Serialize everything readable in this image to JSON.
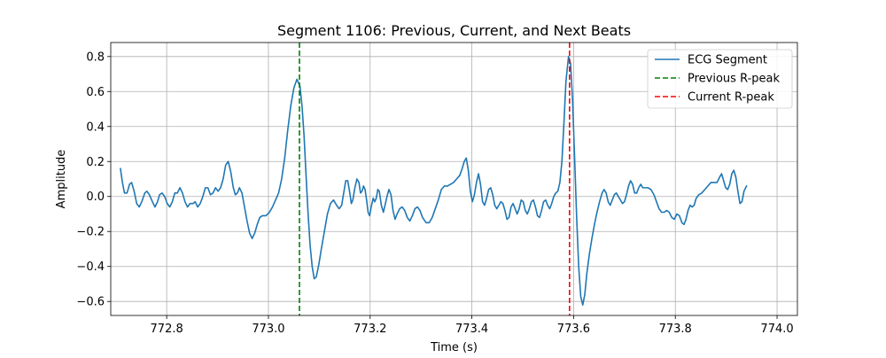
{
  "chart_data": {
    "type": "line",
    "title": "Segment 1106: Previous, Current, and Next Beats",
    "xlabel": "Time (s)",
    "ylabel": "Amplitude",
    "xlim": [
      772.69,
      774.04
    ],
    "ylim": [
      -0.68,
      0.88
    ],
    "grid": true,
    "legend_position": "top-right",
    "xticks": [
      772.8,
      773.0,
      773.2,
      773.4,
      773.6,
      773.8,
      774.0
    ],
    "xtick_labels": [
      "772.8",
      "773.0",
      "773.2",
      "773.4",
      "773.6",
      "773.8",
      "774.0"
    ],
    "yticks": [
      -0.6,
      -0.4,
      -0.2,
      0.0,
      0.2,
      0.4,
      0.6,
      0.8
    ],
    "ytick_labels": [
      "−0.6",
      "−0.4",
      "−0.2",
      "0.0",
      "0.2",
      "0.4",
      "0.6",
      "0.8"
    ],
    "series": [
      {
        "name": "ECG Segment",
        "color": "#1f77b4",
        "style": "solid",
        "points": [
          [
            772.709,
            0.16
          ],
          [
            772.713,
            0.08
          ],
          [
            772.717,
            0.02
          ],
          [
            772.722,
            0.02
          ],
          [
            772.727,
            0.07
          ],
          [
            772.731,
            0.08
          ],
          [
            772.736,
            0.03
          ],
          [
            772.741,
            -0.04
          ],
          [
            772.746,
            -0.06
          ],
          [
            772.751,
            -0.03
          ],
          [
            772.757,
            0.02
          ],
          [
            772.761,
            0.03
          ],
          [
            772.766,
            0.01
          ],
          [
            772.772,
            -0.03
          ],
          [
            772.777,
            -0.06
          ],
          [
            772.782,
            -0.03
          ],
          [
            772.786,
            0.01
          ],
          [
            772.791,
            0.02
          ],
          [
            772.796,
            0.0
          ],
          [
            772.801,
            -0.04
          ],
          [
            772.806,
            -0.06
          ],
          [
            772.811,
            -0.03
          ],
          [
            772.816,
            0.02
          ],
          [
            772.821,
            0.02
          ],
          [
            772.826,
            0.05
          ],
          [
            772.831,
            0.02
          ],
          [
            772.836,
            -0.03
          ],
          [
            772.841,
            -0.06
          ],
          [
            772.846,
            -0.04
          ],
          [
            772.852,
            -0.04
          ],
          [
            772.856,
            -0.03
          ],
          [
            772.861,
            -0.06
          ],
          [
            772.866,
            -0.04
          ],
          [
            772.871,
            0.0
          ],
          [
            772.876,
            0.05
          ],
          [
            772.881,
            0.05
          ],
          [
            772.886,
            0.01
          ],
          [
            772.891,
            0.02
          ],
          [
            772.896,
            0.05
          ],
          [
            772.901,
            0.03
          ],
          [
            772.906,
            0.05
          ],
          [
            772.911,
            0.1
          ],
          [
            772.916,
            0.18
          ],
          [
            772.921,
            0.2
          ],
          [
            772.926,
            0.14
          ],
          [
            772.931,
            0.05
          ],
          [
            772.935,
            0.01
          ],
          [
            772.939,
            0.02
          ],
          [
            772.943,
            0.05
          ],
          [
            772.948,
            0.02
          ],
          [
            772.953,
            -0.06
          ],
          [
            772.958,
            -0.14
          ],
          [
            772.963,
            -0.21
          ],
          [
            772.968,
            -0.24
          ],
          [
            772.973,
            -0.21
          ],
          [
            772.978,
            -0.16
          ],
          [
            772.983,
            -0.12
          ],
          [
            772.988,
            -0.11
          ],
          [
            772.995,
            -0.11
          ],
          [
            773.002,
            -0.09
          ],
          [
            773.008,
            -0.06
          ],
          [
            773.014,
            -0.02
          ],
          [
            773.02,
            0.02
          ],
          [
            773.026,
            0.1
          ],
          [
            773.032,
            0.22
          ],
          [
            773.038,
            0.38
          ],
          [
            773.044,
            0.52
          ],
          [
            773.05,
            0.62
          ],
          [
            773.056,
            0.67
          ],
          [
            773.062,
            0.63
          ],
          [
            773.066,
            0.52
          ],
          [
            773.07,
            0.35
          ],
          [
            773.074,
            0.12
          ],
          [
            773.078,
            -0.1
          ],
          [
            773.082,
            -0.28
          ],
          [
            773.086,
            -0.4
          ],
          [
            773.09,
            -0.47
          ],
          [
            773.094,
            -0.46
          ],
          [
            773.099,
            -0.39
          ],
          [
            773.104,
            -0.3
          ],
          [
            773.11,
            -0.2
          ],
          [
            773.116,
            -0.1
          ],
          [
            773.122,
            -0.04
          ],
          [
            773.128,
            -0.02
          ],
          [
            773.134,
            -0.05
          ],
          [
            773.139,
            -0.07
          ],
          [
            773.144,
            -0.05
          ],
          [
            773.148,
            0.02
          ],
          [
            773.152,
            0.09
          ],
          [
            773.156,
            0.09
          ],
          [
            773.16,
            0.02
          ],
          [
            773.163,
            -0.04
          ],
          [
            773.166,
            -0.02
          ],
          [
            773.17,
            0.05
          ],
          [
            773.174,
            0.1
          ],
          [
            773.178,
            0.08
          ],
          [
            773.181,
            0.02
          ],
          [
            773.184,
            0.03
          ],
          [
            773.187,
            0.06
          ],
          [
            773.19,
            0.04
          ],
          [
            773.193,
            -0.02
          ],
          [
            773.196,
            -0.09
          ],
          [
            773.199,
            -0.11
          ],
          [
            773.202,
            -0.06
          ],
          [
            773.206,
            -0.01
          ],
          [
            773.209,
            -0.03
          ],
          [
            773.212,
            -0.01
          ],
          [
            773.215,
            0.04
          ],
          [
            773.218,
            0.03
          ],
          [
            773.222,
            -0.05
          ],
          [
            773.226,
            -0.09
          ],
          [
            773.23,
            -0.04
          ],
          [
            773.234,
            0.01
          ],
          [
            773.237,
            0.04
          ],
          [
            773.241,
            0.01
          ],
          [
            773.245,
            -0.08
          ],
          [
            773.249,
            -0.13
          ],
          [
            773.253,
            -0.1
          ],
          [
            773.258,
            -0.07
          ],
          [
            773.263,
            -0.06
          ],
          [
            773.268,
            -0.08
          ],
          [
            773.273,
            -0.12
          ],
          [
            773.278,
            -0.14
          ],
          [
            773.283,
            -0.11
          ],
          [
            773.288,
            -0.07
          ],
          [
            773.293,
            -0.06
          ],
          [
            773.298,
            -0.08
          ],
          [
            773.303,
            -0.12
          ],
          [
            773.31,
            -0.15
          ],
          [
            773.316,
            -0.15
          ],
          [
            773.322,
            -0.12
          ],
          [
            773.328,
            -0.07
          ],
          [
            773.334,
            -0.02
          ],
          [
            773.34,
            0.04
          ],
          [
            773.346,
            0.06
          ],
          [
            773.352,
            0.06
          ],
          [
            773.358,
            0.07
          ],
          [
            773.364,
            0.08
          ],
          [
            773.37,
            0.1
          ],
          [
            773.376,
            0.12
          ],
          [
            773.381,
            0.16
          ],
          [
            773.385,
            0.2
          ],
          [
            773.389,
            0.22
          ],
          [
            773.393,
            0.15
          ],
          [
            773.397,
            0.03
          ],
          [
            773.401,
            -0.03
          ],
          [
            773.405,
            0.01
          ],
          [
            773.409,
            0.08
          ],
          [
            773.413,
            0.13
          ],
          [
            773.417,
            0.07
          ],
          [
            773.421,
            -0.03
          ],
          [
            773.425,
            -0.05
          ],
          [
            773.429,
            -0.01
          ],
          [
            773.433,
            0.04
          ],
          [
            773.437,
            0.05
          ],
          [
            773.441,
            0.01
          ],
          [
            773.445,
            -0.05
          ],
          [
            773.449,
            -0.07
          ],
          [
            773.453,
            -0.05
          ],
          [
            773.457,
            -0.03
          ],
          [
            773.461,
            -0.04
          ],
          [
            773.465,
            -0.08
          ],
          [
            773.469,
            -0.13
          ],
          [
            773.473,
            -0.12
          ],
          [
            773.477,
            -0.06
          ],
          [
            773.481,
            -0.04
          ],
          [
            773.485,
            -0.07
          ],
          [
            773.489,
            -0.1
          ],
          [
            773.493,
            -0.07
          ],
          [
            773.497,
            -0.02
          ],
          [
            773.501,
            -0.03
          ],
          [
            773.505,
            -0.08
          ],
          [
            773.509,
            -0.1
          ],
          [
            773.513,
            -0.07
          ],
          [
            773.517,
            -0.03
          ],
          [
            773.521,
            -0.02
          ],
          [
            773.525,
            -0.06
          ],
          [
            773.529,
            -0.11
          ],
          [
            773.533,
            -0.12
          ],
          [
            773.537,
            -0.08
          ],
          [
            773.541,
            -0.03
          ],
          [
            773.545,
            -0.02
          ],
          [
            773.549,
            -0.05
          ],
          [
            773.553,
            -0.07
          ],
          [
            773.557,
            -0.04
          ],
          [
            773.561,
            0.0
          ],
          [
            773.565,
            0.02
          ],
          [
            773.569,
            0.03
          ],
          [
            773.573,
            0.08
          ],
          [
            773.577,
            0.2
          ],
          [
            773.581,
            0.42
          ],
          [
            773.585,
            0.66
          ],
          [
            773.59,
            0.8
          ],
          [
            773.594,
            0.76
          ],
          [
            773.598,
            0.55
          ],
          [
            773.602,
            0.22
          ],
          [
            773.606,
            -0.12
          ],
          [
            773.61,
            -0.4
          ],
          [
            773.614,
            -0.57
          ],
          [
            773.618,
            -0.62
          ],
          [
            773.622,
            -0.56
          ],
          [
            773.626,
            -0.44
          ],
          [
            773.631,
            -0.33
          ],
          [
            773.636,
            -0.24
          ],
          [
            773.641,
            -0.16
          ],
          [
            773.646,
            -0.09
          ],
          [
            773.651,
            -0.03
          ],
          [
            773.656,
            0.02
          ],
          [
            773.66,
            0.04
          ],
          [
            773.664,
            0.02
          ],
          [
            773.668,
            -0.03
          ],
          [
            773.672,
            -0.05
          ],
          [
            773.676,
            -0.02
          ],
          [
            773.68,
            0.01
          ],
          [
            773.684,
            0.02
          ],
          [
            773.688,
            0.0
          ],
          [
            773.692,
            -0.02
          ],
          [
            773.696,
            -0.04
          ],
          [
            773.7,
            -0.03
          ],
          [
            773.704,
            0.01
          ],
          [
            773.708,
            0.06
          ],
          [
            773.712,
            0.09
          ],
          [
            773.716,
            0.07
          ],
          [
            773.72,
            0.02
          ],
          [
            773.724,
            0.02
          ],
          [
            773.728,
            0.05
          ],
          [
            773.732,
            0.07
          ],
          [
            773.736,
            0.05
          ],
          [
            773.741,
            0.05
          ],
          [
            773.746,
            0.05
          ],
          [
            773.752,
            0.04
          ],
          [
            773.758,
            0.01
          ],
          [
            773.763,
            -0.03
          ],
          [
            773.768,
            -0.07
          ],
          [
            773.773,
            -0.09
          ],
          [
            773.778,
            -0.09
          ],
          [
            773.783,
            -0.08
          ],
          [
            773.788,
            -0.09
          ],
          [
            773.793,
            -0.12
          ],
          [
            773.798,
            -0.13
          ],
          [
            773.803,
            -0.1
          ],
          [
            773.808,
            -0.11
          ],
          [
            773.813,
            -0.15
          ],
          [
            773.817,
            -0.16
          ],
          [
            773.821,
            -0.13
          ],
          [
            773.825,
            -0.08
          ],
          [
            773.829,
            -0.05
          ],
          [
            773.833,
            -0.06
          ],
          [
            773.837,
            -0.05
          ],
          [
            773.841,
            -0.01
          ],
          [
            773.846,
            0.01
          ],
          [
            773.852,
            0.02
          ],
          [
            773.858,
            0.04
          ],
          [
            773.864,
            0.06
          ],
          [
            773.87,
            0.08
          ],
          [
            773.876,
            0.08
          ],
          [
            773.882,
            0.08
          ],
          [
            773.887,
            0.11
          ],
          [
            773.891,
            0.13
          ],
          [
            773.895,
            0.09
          ],
          [
            773.899,
            0.05
          ],
          [
            773.903,
            0.04
          ],
          [
            773.907,
            0.07
          ],
          [
            773.911,
            0.13
          ],
          [
            773.915,
            0.15
          ],
          [
            773.919,
            0.11
          ],
          [
            773.923,
            0.03
          ],
          [
            773.927,
            -0.04
          ],
          [
            773.931,
            -0.03
          ],
          [
            773.935,
            0.03
          ],
          [
            773.94,
            0.06
          ]
        ]
      }
    ],
    "vlines": [
      {
        "name": "Previous R-peak",
        "x": 773.061,
        "color": "#008000",
        "style": "dashed"
      },
      {
        "name": "Current R-peak",
        "x": 773.592,
        "color": "#ff0000",
        "style": "dashed"
      }
    ],
    "legend": [
      {
        "label": "ECG Segment",
        "color": "#1f77b4",
        "style": "solid"
      },
      {
        "label": "Previous R-peak",
        "color": "#008000",
        "style": "dashed"
      },
      {
        "label": "Current R-peak",
        "color": "#ff0000",
        "style": "dashed"
      }
    ]
  }
}
